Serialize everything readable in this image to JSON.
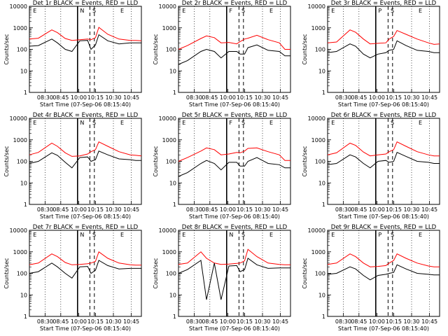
{
  "colors": {
    "events": "#000000",
    "lld": "#ff0000",
    "frame": "#000000",
    "background": "#ffffff"
  },
  "common": {
    "ylabel": "Counts/sec",
    "xlabel": "Start Time (07-Sep-06 08:15:40)",
    "x_ticks": [
      "08:30",
      "08:45",
      "10:00",
      "10:15",
      "10:30",
      "10:45"
    ],
    "y_ticks": [
      "1",
      "10",
      "100",
      "1000",
      "10000"
    ]
  },
  "chart_data": [
    {
      "type": "line",
      "title": "Det 1r BLACK = Events, RED = LLD",
      "markers": [
        "E",
        "N",
        "S",
        "E"
      ],
      "x": [
        0,
        0.08,
        0.2,
        0.25,
        0.32,
        0.38,
        0.45,
        0.52,
        0.55,
        0.59,
        0.62,
        0.7,
        0.8,
        0.9,
        0.95,
        1.0
      ],
      "series": [
        {
          "color": "red",
          "values": [
            300,
            330,
            800,
            600,
            320,
            260,
            280,
            300,
            280,
            350,
            1050,
            500,
            300,
            260,
            260,
            250
          ]
        },
        {
          "color": "black",
          "values": [
            140,
            150,
            300,
            200,
            100,
            80,
            250,
            260,
            100,
            160,
            480,
            250,
            180,
            200,
            200,
            200
          ]
        }
      ],
      "ylim": [
        1,
        10000
      ],
      "yscale": "log"
    },
    {
      "type": "line",
      "title": "Det 2r BLACK = Events, RED = LLD",
      "markers": [
        "E",
        "F",
        "S",
        "E"
      ],
      "x": [
        0,
        0.08,
        0.2,
        0.25,
        0.32,
        0.38,
        0.45,
        0.52,
        0.55,
        0.59,
        0.62,
        0.7,
        0.8,
        0.9,
        0.95,
        1.0
      ],
      "series": [
        {
          "color": "red",
          "values": [
            100,
            150,
            320,
            420,
            350,
            200,
            210,
            180,
            230,
            300,
            330,
            450,
            280,
            200,
            100,
            100
          ]
        },
        {
          "color": "black",
          "values": [
            20,
            30,
            80,
            100,
            80,
            40,
            80,
            80,
            60,
            60,
            120,
            160,
            90,
            80,
            50,
            50
          ]
        }
      ],
      "ylim": [
        1,
        10000
      ],
      "yscale": "log"
    },
    {
      "type": "line",
      "title": "Det 3r BLACK = Events, RED = LLD",
      "markers": [
        "E",
        "P",
        "S",
        "E"
      ],
      "x": [
        0,
        0.08,
        0.2,
        0.25,
        0.32,
        0.38,
        0.45,
        0.52,
        0.55,
        0.59,
        0.62,
        0.7,
        0.8,
        0.9,
        0.95,
        1.0
      ],
      "series": [
        {
          "color": "red",
          "values": [
            200,
            220,
            800,
            620,
            300,
            180,
            190,
            200,
            300,
            400,
            750,
            500,
            300,
            200,
            170,
            180
          ]
        },
        {
          "color": "black",
          "values": [
            70,
            80,
            180,
            140,
            60,
            40,
            60,
            70,
            90,
            100,
            250,
            150,
            90,
            80,
            70,
            70
          ]
        }
      ],
      "ylim": [
        1,
        10000
      ],
      "yscale": "log"
    },
    {
      "type": "line",
      "title": "Det 4r BLACK = Events, RED = LLD",
      "markers": [
        "E",
        "N",
        "S",
        "E"
      ],
      "x": [
        0,
        0.08,
        0.2,
        0.25,
        0.32,
        0.38,
        0.45,
        0.52,
        0.55,
        0.59,
        0.62,
        0.7,
        0.8,
        0.9,
        0.95,
        1.0
      ],
      "series": [
        {
          "color": "red",
          "values": [
            200,
            260,
            700,
            500,
            250,
            170,
            180,
            220,
            280,
            350,
            800,
            500,
            280,
            200,
            190,
            180
          ]
        },
        {
          "color": "black",
          "values": [
            80,
            100,
            250,
            190,
            90,
            50,
            150,
            160,
            100,
            120,
            300,
            200,
            130,
            120,
            110,
            110
          ]
        }
      ],
      "ylim": [
        1,
        10000
      ],
      "yscale": "log"
    },
    {
      "type": "line",
      "title": "Det 5r BLACK = Events, RED = LLD",
      "markers": [
        "E",
        "F",
        "S",
        "E"
      ],
      "x": [
        0,
        0.08,
        0.2,
        0.25,
        0.32,
        0.38,
        0.45,
        0.52,
        0.55,
        0.59,
        0.62,
        0.7,
        0.8,
        0.9,
        0.95,
        1.0
      ],
      "series": [
        {
          "color": "red",
          "values": [
            100,
            150,
            300,
            420,
            350,
            200,
            220,
            260,
            250,
            300,
            400,
            420,
            280,
            200,
            110,
            110
          ]
        },
        {
          "color": "black",
          "values": [
            20,
            30,
            80,
            110,
            80,
            40,
            90,
            90,
            60,
            60,
            100,
            150,
            80,
            70,
            50,
            50
          ]
        }
      ],
      "ylim": [
        1,
        10000
      ],
      "yscale": "log"
    },
    {
      "type": "line",
      "title": "Det 6r BLACK = Events, RED = LLD",
      "markers": [
        "E",
        "S",
        "E"
      ],
      "x": [
        0,
        0.08,
        0.2,
        0.25,
        0.32,
        0.38,
        0.45,
        0.52,
        0.55,
        0.59,
        0.62,
        0.7,
        0.8,
        0.9,
        0.95,
        1.0
      ],
      "series": [
        {
          "color": "red",
          "values": [
            200,
            250,
            700,
            550,
            270,
            180,
            200,
            220,
            280,
            350,
            800,
            500,
            280,
            200,
            180,
            180
          ]
        },
        {
          "color": "black",
          "values": [
            70,
            80,
            200,
            160,
            80,
            50,
            100,
            110,
            90,
            100,
            260,
            170,
            100,
            90,
            80,
            80
          ]
        }
      ],
      "ylim": [
        1,
        10000
      ],
      "yscale": "log"
    },
    {
      "type": "line",
      "title": "Det 7r BLACK = Events, RED = LLD",
      "markers": [
        "E",
        "N",
        "S",
        "E"
      ],
      "x": [
        0,
        0.08,
        0.2,
        0.25,
        0.32,
        0.38,
        0.45,
        0.52,
        0.55,
        0.59,
        0.62,
        0.7,
        0.8,
        0.9,
        0.95,
        1.0
      ],
      "series": [
        {
          "color": "red",
          "values": [
            250,
            300,
            800,
            600,
            320,
            250,
            260,
            280,
            300,
            360,
            1000,
            500,
            300,
            250,
            240,
            240
          ]
        },
        {
          "color": "black",
          "values": [
            100,
            120,
            300,
            200,
            100,
            60,
            200,
            210,
            100,
            140,
            400,
            230,
            160,
            170,
            170,
            170
          ]
        }
      ],
      "ylim": [
        1,
        10000
      ],
      "yscale": "log"
    },
    {
      "type": "line",
      "title": "Det 8r BLACK = Events, RED = LLD",
      "markers": [
        "E",
        "N",
        "S",
        "E"
      ],
      "x": [
        0,
        0.08,
        0.2,
        0.25,
        0.32,
        0.38,
        0.45,
        0.52,
        0.55,
        0.59,
        0.62,
        0.7,
        0.8,
        0.9,
        0.95,
        1.0
      ],
      "series": [
        {
          "color": "red",
          "values": [
            260,
            300,
            1000,
            500,
            300,
            260,
            270,
            290,
            300,
            380,
            1300,
            600,
            300,
            260,
            250,
            250
          ]
        },
        {
          "color": "black",
          "values": [
            100,
            150,
            400,
            6,
            300,
            6,
            220,
            230,
            120,
            150,
            500,
            250,
            170,
            180,
            180,
            180
          ]
        }
      ],
      "ylim": [
        1,
        10000
      ],
      "yscale": "log"
    },
    {
      "type": "line",
      "title": "Det 9r BLACK = Events, RED = LLD",
      "markers": [
        "E",
        "P",
        "S",
        "E"
      ],
      "x": [
        0,
        0.08,
        0.2,
        0.25,
        0.32,
        0.38,
        0.45,
        0.52,
        0.55,
        0.59,
        0.62,
        0.7,
        0.8,
        0.9,
        0.95,
        1.0
      ],
      "series": [
        {
          "color": "red",
          "values": [
            260,
            300,
            800,
            600,
            300,
            200,
            210,
            230,
            300,
            400,
            800,
            500,
            300,
            220,
            200,
            200
          ]
        },
        {
          "color": "black",
          "values": [
            90,
            100,
            200,
            160,
            80,
            50,
            80,
            90,
            100,
            110,
            250,
            160,
            100,
            90,
            85,
            85
          ]
        }
      ],
      "ylim": [
        1,
        10000
      ],
      "yscale": "log"
    }
  ]
}
